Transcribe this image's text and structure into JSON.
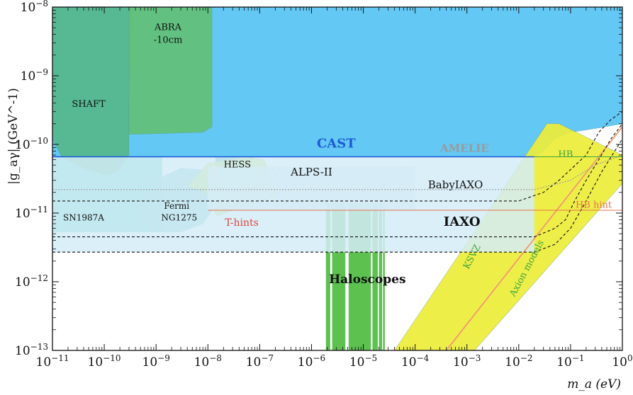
{
  "chart_data": {
    "type": "area",
    "xlabel": "m_a (eV)",
    "ylabel": "|g_aγ| (GeV^-1)",
    "x_scale": "log",
    "y_scale": "log",
    "xlim": [
      1e-11,
      1
    ],
    "ylim": [
      1e-13,
      1e-08
    ],
    "x_tick_values": [
      1e-11,
      1e-10,
      1e-09,
      1e-08,
      1e-07,
      1e-06,
      1e-05,
      0.0001,
      0.001,
      0.01,
      0.1,
      1
    ],
    "x_tick_labels": [
      {
        "base": "10",
        "exp": "−11"
      },
      {
        "base": "10",
        "exp": "−10"
      },
      {
        "base": "10",
        "exp": "−9"
      },
      {
        "base": "10",
        "exp": "−8"
      },
      {
        "base": "10",
        "exp": "−7"
      },
      {
        "base": "10",
        "exp": "−6"
      },
      {
        "base": "10",
        "exp": "−5"
      },
      {
        "base": "10",
        "exp": "−4"
      },
      {
        "base": "10",
        "exp": "−3"
      },
      {
        "base": "10",
        "exp": "−2"
      },
      {
        "base": "10",
        "exp": "−1"
      },
      {
        "base": "10",
        "exp": "0"
      }
    ],
    "y_tick_values": [
      1e-13,
      1e-12,
      1e-11,
      1e-10,
      1e-09,
      1e-08
    ],
    "y_tick_labels": [
      {
        "base": "10",
        "exp": "−13"
      },
      {
        "base": "10",
        "exp": "−12"
      },
      {
        "base": "10",
        "exp": "−11"
      },
      {
        "base": "10",
        "exp": "−10"
      },
      {
        "base": "10",
        "exp": "−9"
      },
      {
        "base": "10",
        "exp": "−8"
      }
    ],
    "regions": [
      {
        "name": "CAST",
        "color": "#56c3f3",
        "label": "CAST",
        "label_color": "#1e5ad6",
        "points": [
          [
            1e-11,
            6.6e-11
          ],
          [
            0.02,
            6.6e-11
          ],
          [
            0.03,
            8e-11
          ],
          [
            0.05,
            1.2e-10
          ],
          [
            0.1,
            1.5e-10
          ],
          [
            0.3,
            1.7e-10
          ],
          [
            1,
            2e-10
          ],
          [
            1,
            1e-08
          ],
          [
            1e-11,
            1e-08
          ]
        ]
      },
      {
        "name": "SN1987A",
        "color": "#5ccfc4",
        "label": "SN1987A",
        "points": [
          [
            1e-11,
            5.3e-12
          ],
          [
            1.3e-09,
            5.3e-12
          ],
          [
            1.3e-09,
            6.6e-11
          ],
          [
            1e-11,
            6.6e-11
          ]
        ]
      },
      {
        "name": "SHAFT",
        "color": "#55b78a",
        "label": "SHAFT",
        "points": [
          [
            1e-11,
            1e-08
          ],
          [
            3.5e-10,
            1e-08
          ],
          [
            3e-10,
            4e-10
          ],
          [
            3e-10,
            7e-11
          ],
          [
            2e-10,
            4.5e-11
          ],
          [
            1.2e-10,
            3.5e-11
          ],
          [
            4e-11,
            4.5e-11
          ],
          [
            1.5e-11,
            6.6e-11
          ],
          [
            1e-11,
            1.2e-10
          ]
        ]
      },
      {
        "name": "ABRA",
        "color": "#62c075",
        "label": "ABRA-10cm",
        "points": [
          [
            3e-10,
            1e-08
          ],
          [
            1.2e-08,
            1e-08
          ],
          [
            1.2e-08,
            1.8e-10
          ],
          [
            8e-09,
            1.5e-10
          ],
          [
            3e-10,
            1.4e-10
          ]
        ]
      },
      {
        "name": "Fermi",
        "color": "#72cec8",
        "label": "Fermi NG1275",
        "points": [
          [
            5e-10,
            1.5e-11
          ],
          [
            1.2e-09,
            3.2e-11
          ],
          [
            3e-09,
            4.5e-11
          ],
          [
            7e-09,
            4.3e-11
          ],
          [
            1.2e-08,
            3e-11
          ],
          [
            1.3e-08,
            1.2e-11
          ],
          [
            8e-09,
            7e-12
          ],
          [
            3e-09,
            5.3e-12
          ],
          [
            1e-09,
            5.3e-12
          ],
          [
            5e-10,
            8e-12
          ]
        ]
      },
      {
        "name": "HESS",
        "color": "#46a8ac",
        "label": "HESS",
        "points": [
          [
            1.4e-08,
            6.6e-11
          ],
          [
            7.5e-08,
            6.6e-11
          ],
          [
            6e-08,
            3.5e-11
          ],
          [
            4e-08,
            2.5e-11
          ],
          [
            2.2e-08,
            2.6e-11
          ],
          [
            1.5e-08,
            3.5e-11
          ]
        ]
      },
      {
        "name": "T-hints",
        "color": "#c9e25a",
        "label": "T-hints",
        "label_color": "#e0463c",
        "points": [
          [
            4e-09,
            2.5e-11
          ],
          [
            6e-09,
            3.5e-11
          ],
          [
            1e-08,
            5.3e-11
          ],
          [
            5e-08,
            6.6e-11
          ],
          [
            1.2e-07,
            6e-11
          ],
          [
            1.5e-07,
            4e-11
          ],
          [
            2e-07,
            2.3e-11
          ],
          [
            2.5e-07,
            1.8e-11
          ],
          [
            1e-07,
            1.5e-11
          ],
          [
            5e-08,
            1.3e-11
          ],
          [
            3e-08,
            1.1e-11
          ],
          [
            1.5e-08,
            9e-12
          ],
          [
            1.2e-08,
            1.3e-11
          ],
          [
            9e-09,
            2e-11
          ]
        ]
      },
      {
        "name": "Haloscopes",
        "color": "#5cc14f",
        "label": "Haloscopes",
        "bands": [
          [
            1.9e-06,
            2.3e-06
          ],
          [
            2.5e-06,
            4.5e-06
          ],
          [
            5.2e-06,
            1.4e-05
          ],
          [
            1.5e-05,
            1.9e-05
          ],
          [
            2e-05,
            2.3e-05
          ],
          [
            2.4e-05,
            2.6e-05
          ]
        ]
      },
      {
        "name": "Axion models",
        "color": "#eded3a",
        "label": "Axion models",
        "points": [
          [
            4e-05,
            1e-13
          ],
          [
            0.0014,
            1e-13
          ],
          [
            1,
            2.7e-11
          ],
          [
            1,
            7e-11
          ],
          [
            0.06,
            2e-10
          ],
          [
            0.035,
            2e-10
          ]
        ]
      },
      {
        "name": "ALPS-II",
        "color": "#dcebf3",
        "label": "ALPS-II",
        "points": [
          [
            1e-08,
            4.7e-11
          ],
          [
            0.0001,
            4.7e-11
          ],
          [
            0.0001,
            1.1e-11
          ],
          [
            1e-08,
            1.1e-11
          ]
        ]
      },
      {
        "name": "IAXO",
        "color": "#d3ecf7",
        "label": "IAXO",
        "points": [
          [
            1e-11,
            6.6e-11
          ],
          [
            0.02,
            6.6e-11
          ],
          [
            0.02,
            2.7e-12
          ],
          [
            1e-11,
            2.7e-12
          ]
        ]
      }
    ],
    "lines": [
      {
        "name": "KSVZ",
        "label": "KSVZ",
        "color": "#ef9a70",
        "label_color": "#3ca63c",
        "points": [
          [
            0.0004,
            1e-13
          ],
          [
            1,
            1.8e-10
          ]
        ]
      },
      {
        "name": "BabyIAXO",
        "label": "BabyIAXO",
        "color": "#111111",
        "dash": "4,3",
        "points": [
          [
            1e-11,
            1.5e-11
          ],
          [
            0.01,
            1.5e-11
          ],
          [
            0.03,
            2e-11
          ],
          [
            0.06,
            3e-11
          ],
          [
            0.1,
            4.3e-11
          ],
          [
            0.2,
            7e-11
          ],
          [
            0.35,
            1.5e-10
          ],
          [
            0.6,
            2.3e-10
          ],
          [
            1,
            3e-10
          ]
        ]
      },
      {
        "name": "IAXO-limit",
        "label": "",
        "color": "#111111",
        "dash": "4,3",
        "points": [
          [
            1e-11,
            4.5e-12
          ],
          [
            0.02,
            4.5e-12
          ],
          [
            0.05,
            6e-12
          ],
          [
            0.08,
            8e-12
          ],
          [
            0.12,
            1.5e-11
          ],
          [
            0.2,
            3e-11
          ],
          [
            0.35,
            6e-11
          ],
          [
            0.6,
            1.2e-10
          ],
          [
            1,
            2e-10
          ]
        ]
      },
      {
        "name": "IAXO-plus",
        "label": "",
        "color": "#111111",
        "dash": "4,3",
        "points": [
          [
            1e-11,
            2.7e-12
          ],
          [
            0.02,
            2.7e-12
          ],
          [
            0.05,
            3.5e-12
          ],
          [
            0.1,
            6e-12
          ],
          [
            0.2,
            1.5e-11
          ],
          [
            0.4,
            4e-11
          ],
          [
            1,
            1.2e-10
          ]
        ]
      },
      {
        "name": "AMELIE",
        "label": "AMELIE",
        "color": "#9a9a9a",
        "dash": "2,2",
        "points": [
          [
            1e-11,
            2.2e-11
          ],
          [
            0.02,
            2.2e-11
          ],
          [
            0.1,
            3e-11
          ],
          [
            0.3,
            5e-11
          ],
          [
            1,
            7e-11
          ]
        ]
      },
      {
        "name": "HB",
        "label": "HB",
        "color": "#3ca63c",
        "dash": "",
        "points": [
          [
            0.02,
            6.6e-11
          ],
          [
            1,
            6.6e-11
          ]
        ]
      },
      {
        "name": "HB hint",
        "label": "HB hint",
        "color": "#e6734f",
        "dash": "",
        "points": [
          [
            1e-08,
            1.1e-11
          ],
          [
            1,
            1.1e-11
          ]
        ]
      }
    ],
    "labels": [
      {
        "text": "CAST",
        "x": 3e-06,
        "y": 9e-11,
        "color": "#1e5ad6",
        "size": 18,
        "weight": "bold"
      },
      {
        "text": "SHAFT",
        "x": 5e-11,
        "y": 3.5e-10,
        "color": "#111111",
        "size": 13,
        "weight": "normal"
      },
      {
        "text": "ABRA",
        "x": 1.7e-09,
        "y": 4.6e-09,
        "color": "#111111",
        "size": 13,
        "weight": "normal"
      },
      {
        "text": "-10cm",
        "x": 1.7e-09,
        "y": 3e-09,
        "color": "#111111",
        "size": 13,
        "weight": "normal"
      },
      {
        "text": "HESS",
        "x": 3.7e-08,
        "y": 4.6e-11,
        "color": "#111111",
        "size": 13,
        "weight": "normal"
      },
      {
        "text": "ALPS-II",
        "x": 1e-06,
        "y": 3.5e-11,
        "color": "#111111",
        "size": 15,
        "weight": "normal"
      },
      {
        "text": "BabyIAXO",
        "x": 0.0006,
        "y": 2.3e-11,
        "color": "#111111",
        "size": 15,
        "weight": "normal"
      },
      {
        "text": "AMELIE",
        "x": 0.0009,
        "y": 7.8e-11,
        "color": "#9a9a9a",
        "size": 15,
        "weight": "bold"
      },
      {
        "text": "HB",
        "x": 0.08,
        "y": 6.5e-11,
        "color": "#3ca63c",
        "size": 13,
        "weight": "normal"
      },
      {
        "text": "HB hint",
        "x": 0.28,
        "y": 1.2e-11,
        "color": "#e6734f",
        "size": 13,
        "weight": "normal"
      },
      {
        "text": "SN1987A",
        "x": 4e-11,
        "y": 7.8e-12,
        "color": "#111111",
        "size": 12,
        "weight": "normal"
      },
      {
        "text": "Fermi",
        "x": 2.5e-09,
        "y": 1.15e-11,
        "color": "#111111",
        "size": 12,
        "weight": "normal"
      },
      {
        "text": "NG1275",
        "x": 2.8e-09,
        "y": 7.8e-12,
        "color": "#111111",
        "size": 12,
        "weight": "normal"
      },
      {
        "text": "T-hints",
        "x": 4.5e-08,
        "y": 6.5e-12,
        "color": "#e0463c",
        "size": 14,
        "weight": "normal"
      },
      {
        "text": "IAXO",
        "x": 0.0008,
        "y": 6.5e-12,
        "color": "#111111",
        "size": 18,
        "weight": "bold"
      },
      {
        "text": "Haloscopes",
        "x": 1.2e-05,
        "y": 9.5e-13,
        "color": "#111111",
        "size": 17,
        "weight": "bold"
      },
      {
        "text": "KSVZ",
        "x": 0.0014,
        "y": 2.2e-12,
        "color": "#3ca63c",
        "size": 13,
        "weight": "normal",
        "rotate": -62
      },
      {
        "text": "Axion models",
        "x": 0.016,
        "y": 1.5e-12,
        "color": "#3ca63c",
        "size": 13,
        "weight": "normal",
        "rotate": -62
      }
    ]
  }
}
